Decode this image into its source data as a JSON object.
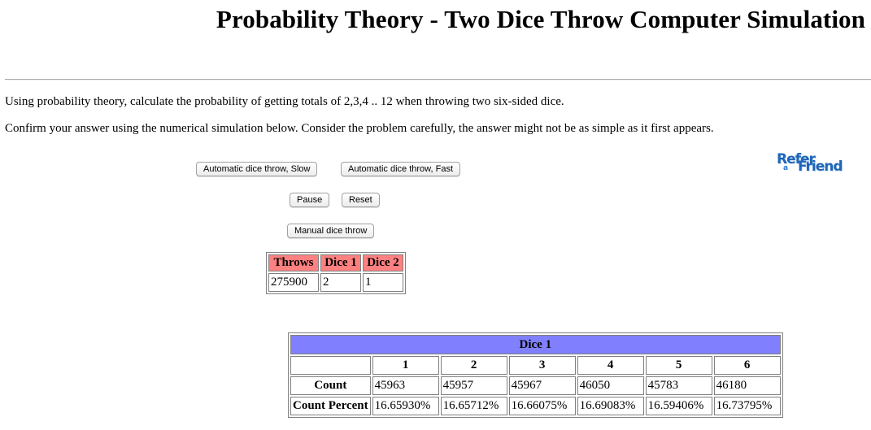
{
  "page": {
    "title": "Probability Theory - Two Dice Throw Computer Simulation",
    "intro": "Using probability theory, calculate the probability of getting totals of 2,3,4 .. 12 when throwing two six-sided dice.",
    "instructions": "Confirm your answer using the numerical simulation below. Consider the problem carefully, the answer might not be as simple as it first appears."
  },
  "controls": {
    "auto_slow": "Automatic dice throw, Slow",
    "auto_fast": "Automatic dice throw, Fast",
    "pause": "Pause",
    "reset": "Reset",
    "manual": "Manual dice throw"
  },
  "logo": {
    "text_1": "Refer",
    "text_2": "a",
    "text_3": "Friend"
  },
  "throws_table": {
    "headers": [
      "Throws",
      "Dice 1",
      "Dice 2"
    ],
    "values": [
      "275900",
      "2",
      "1"
    ]
  },
  "dice1_table": {
    "title": "Dice 1",
    "faces": [
      "1",
      "2",
      "3",
      "4",
      "5",
      "6"
    ],
    "count_label": "Count",
    "counts": [
      "45963",
      "45957",
      "45967",
      "46050",
      "45783",
      "46180"
    ],
    "percent_label": "Count Percent",
    "percents": [
      "16.65930%",
      "16.65712%",
      "16.66075%",
      "16.69083%",
      "16.59406%",
      "16.73795%"
    ]
  },
  "colors": {
    "throws_header_bg": "#ff8080",
    "dice_header_bg": "#8080ff",
    "logo_blue": "#1e66b8"
  }
}
